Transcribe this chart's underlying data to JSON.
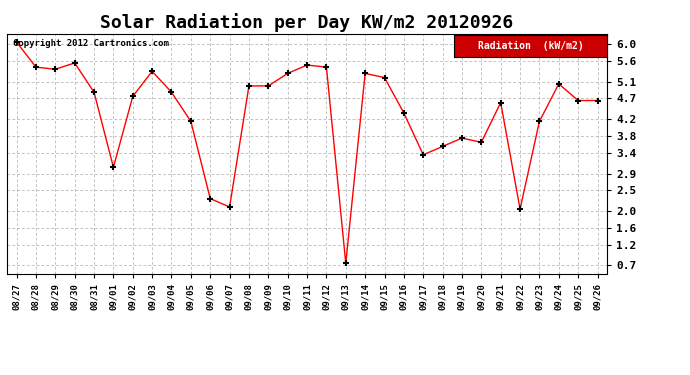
{
  "title": "Solar Radiation per Day KW/m2 20120926",
  "copyright": "Copyright 2012 Cartronics.com",
  "legend_label": "Radiation  (kW/m2)",
  "dates": [
    "08/27",
    "08/28",
    "08/29",
    "08/30",
    "08/31",
    "09/01",
    "09/02",
    "09/03",
    "09/04",
    "09/05",
    "09/06",
    "09/07",
    "09/08",
    "09/09",
    "09/10",
    "09/11",
    "09/12",
    "09/13",
    "09/14",
    "09/15",
    "09/16",
    "09/17",
    "09/18",
    "09/19",
    "09/20",
    "09/21",
    "09/22",
    "09/23",
    "09/24",
    "09/25",
    "09/26"
  ],
  "values": [
    6.05,
    5.45,
    5.4,
    5.55,
    4.85,
    3.05,
    4.75,
    5.35,
    4.85,
    4.15,
    2.3,
    2.1,
    5.0,
    5.0,
    5.3,
    5.5,
    5.45,
    0.75,
    5.3,
    5.2,
    4.35,
    3.35,
    3.55,
    3.75,
    3.65,
    4.6,
    2.05,
    4.15,
    5.05,
    4.65,
    4.65
  ],
  "ylim": [
    0.5,
    6.25
  ],
  "yticks": [
    0.7,
    1.2,
    1.6,
    2.0,
    2.5,
    2.9,
    3.4,
    3.8,
    4.2,
    4.7,
    5.1,
    5.6,
    6.0
  ],
  "line_color": "red",
  "marker_color": "black",
  "marker": "+",
  "bg_color": "#ffffff",
  "plot_bg_color": "#ffffff",
  "grid_color": "#aaaaaa",
  "title_fontsize": 13,
  "legend_bg": "#cc0000",
  "legend_text_color": "#ffffff"
}
